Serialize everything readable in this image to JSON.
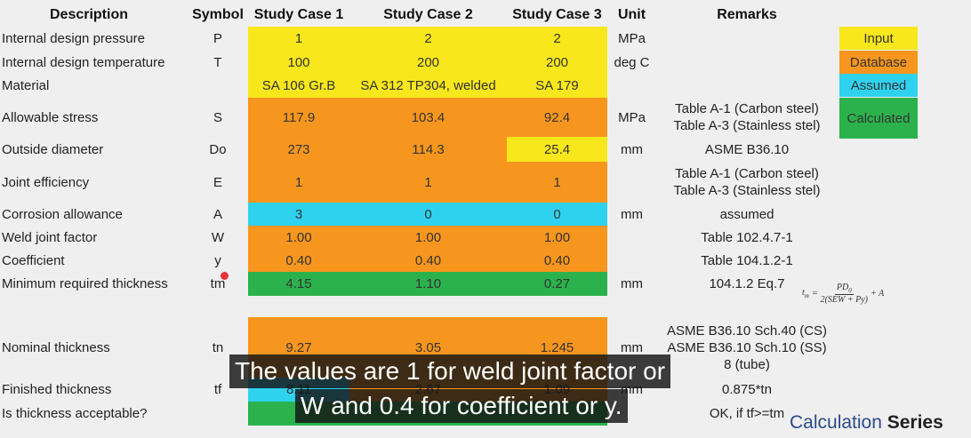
{
  "header": [
    "Description",
    "Symbol",
    "Study Case 1",
    "Study Case 2",
    "Study Case 3",
    "Unit",
    "Remarks"
  ],
  "rows": [
    {
      "description": "Internal design pressure",
      "symbol": "P",
      "values": [
        "1",
        "2",
        "2"
      ],
      "unit": "MPa"
    },
    {
      "description": "Internal design temperature",
      "symbol": "T",
      "values": [
        "100",
        "200",
        "200"
      ],
      "unit": "deg C"
    },
    {
      "description": "Material",
      "values": [
        "SA 106 Gr.B",
        "SA 312 TP304, welded",
        "SA 179"
      ]
    },
    {
      "description": "Allowable stress",
      "symbol": "S",
      "values": [
        "117.9",
        "103.4",
        "92.4"
      ],
      "unit": "MPa",
      "remarks": [
        "Table A-1 (Carbon steel)",
        "Table A-3 (Stainless stel)"
      ]
    },
    {
      "description": "Outside diameter",
      "symbol": "Do",
      "values": [
        "273",
        "114.3",
        "25.4"
      ],
      "unit": "mm",
      "remarks": [
        "ASME B36.10"
      ]
    },
    {
      "description": "Joint efficiency",
      "symbol": "E",
      "values": [
        "1",
        "1",
        "1"
      ],
      "remarks": [
        "Table A-1 (Carbon steel)",
        "Table A-3 (Stainless stel)"
      ]
    },
    {
      "description": "Corrosion allowance",
      "symbol": "A",
      "values": [
        "3",
        "0",
        "0"
      ],
      "unit": "mm",
      "remarks": [
        "assumed"
      ]
    },
    {
      "description": "Weld joint factor",
      "symbol": "W",
      "values": [
        "1.00",
        "1.00",
        "1.00"
      ],
      "remarks": [
        "Table 102.4.7-1"
      ]
    },
    {
      "description": "Coefficient",
      "symbol": "y",
      "values": [
        "0.40",
        "0.40",
        "0.40"
      ],
      "remarks": [
        "Table 104.1.2-1"
      ]
    },
    {
      "description": "Minimum required thickness",
      "symbol": "tm",
      "values": [
        "4.15",
        "1.10",
        "0.27"
      ],
      "unit": "mm",
      "remarks": [
        "104.1.2 Eq.7"
      ]
    },
    {
      "description": "Nominal thickness",
      "symbol": "tn",
      "values": [
        "9.27",
        "3.05",
        "1.245"
      ],
      "unit": "mm",
      "remarks": [
        "ASME B36.10 Sch.40 (CS)",
        "ASME B36.10 Sch.10 (SS)",
        "8 (tube)"
      ]
    },
    {
      "description": "Finished thickness",
      "symbol": "tf",
      "values": [
        "8.11",
        "2.67",
        "1.09"
      ],
      "unit": "mm",
      "remarks": [
        "0.875*tn"
      ]
    },
    {
      "description": "Is thickness acceptable?",
      "remarks": [
        "OK, if tf>=tm"
      ]
    }
  ],
  "formula": {
    "lhs": "t",
    "lhs_sub": "m",
    "eq": "=",
    "numerator": "PD",
    "numerator_sub": "0",
    "denominator": "2(SEW + Py)",
    "tail": "+ A"
  },
  "legend": [
    "Input",
    "Database",
    "Assumed",
    "Calculated"
  ],
  "subtitle": [
    "The values are 1 for weld joint factor or",
    "W and 0.4 for coefficient or y."
  ],
  "watermark": {
    "text": "Calculation",
    "bold": "Series"
  }
}
